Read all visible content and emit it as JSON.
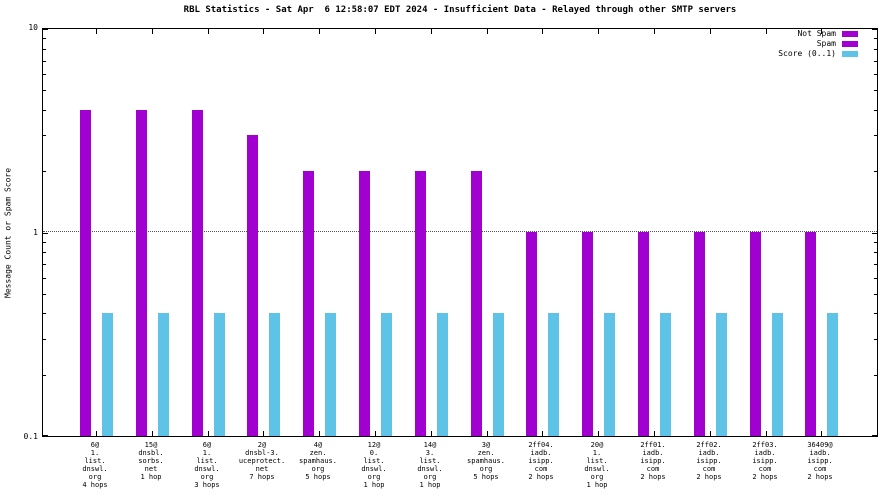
{
  "title": "RBL Statistics - Sat Apr  6 12:58:07 EDT 2024 - Insufficient Data - Relayed through other SMTP servers",
  "y_axis_label": "Message Count or Spam Score",
  "y_ticks": [
    "10",
    "1",
    "0.1"
  ],
  "legend": [
    {
      "label": "Not Spam",
      "color": "#a000d0"
    },
    {
      "label": "Spam",
      "color": "#a000d0"
    },
    {
      "label": "Score (0..1)",
      "color": "#5fc3e8"
    }
  ],
  "chart_data": {
    "type": "bar",
    "y_scale": "log",
    "ylim": [
      0.1,
      10
    ],
    "grid_lines": [
      1
    ],
    "title": "RBL Statistics - Sat Apr  6 12:58:07 EDT 2024 - Insufficient Data - Relayed through other SMTP servers",
    "ylabel": "Message Count or Spam Score",
    "legend_position": "top-right",
    "categories": [
      {
        "lines": [
          "6@",
          "1.",
          "list.",
          "dnswl.",
          "org",
          "4 hops"
        ]
      },
      {
        "lines": [
          "15@",
          "dnsbl.",
          "sorbs.",
          "net",
          "1 hop"
        ]
      },
      {
        "lines": [
          "6@",
          "1.",
          "list.",
          "dnswl.",
          "org",
          "3 hops"
        ]
      },
      {
        "lines": [
          "2@",
          "dnsbl-3.",
          "uceprotect.",
          "net",
          "7 hops"
        ]
      },
      {
        "lines": [
          "4@",
          "zen.",
          "spamhaus.",
          "org",
          "5 hops"
        ]
      },
      {
        "lines": [
          "12@",
          "0.",
          "list.",
          "dnswl.",
          "org",
          "1 hop"
        ]
      },
      {
        "lines": [
          "14@",
          "3.",
          "list.",
          "dnswl.",
          "org",
          "1 hop"
        ]
      },
      {
        "lines": [
          "3@",
          "zen.",
          "spamhaus.",
          "org",
          "5 hops"
        ]
      },
      {
        "lines": [
          "2ff04.",
          "iadb.",
          "isipp.",
          "com",
          "2 hops"
        ]
      },
      {
        "lines": [
          "20@",
          "1.",
          "list.",
          "dnswl.",
          "org",
          "1 hop"
        ]
      },
      {
        "lines": [
          "2ff01.",
          "iadb.",
          "isipp.",
          "com",
          "2 hops"
        ]
      },
      {
        "lines": [
          "2ff02.",
          "iadb.",
          "isipp.",
          "com",
          "2 hops"
        ]
      },
      {
        "lines": [
          "2ff03.",
          "iadb.",
          "isipp.",
          "com",
          "2 hops"
        ]
      },
      {
        "lines": [
          "36409@",
          "iadb.",
          "isipp.",
          "com",
          "2 hops"
        ]
      }
    ],
    "series": [
      {
        "name": "Not Spam",
        "key": "not-spam",
        "color": "#a000d0",
        "values": [
          4,
          4,
          4,
          3,
          2,
          2,
          2,
          2,
          1,
          1,
          1,
          1,
          1,
          1
        ]
      },
      {
        "name": "Spam",
        "key": "spam",
        "color": "#a000d0",
        "values": [
          0,
          0,
          0,
          0,
          0,
          0,
          0,
          0,
          0,
          0,
          0,
          0,
          0,
          0
        ]
      },
      {
        "name": "Score (0..1)",
        "key": "score",
        "color": "#5fc3e8",
        "values": [
          0.4,
          0.4,
          0.4,
          0.4,
          0.4,
          0.4,
          0.4,
          0.4,
          0.4,
          0.4,
          0.4,
          0.4,
          0.4,
          0.4
        ]
      }
    ]
  }
}
